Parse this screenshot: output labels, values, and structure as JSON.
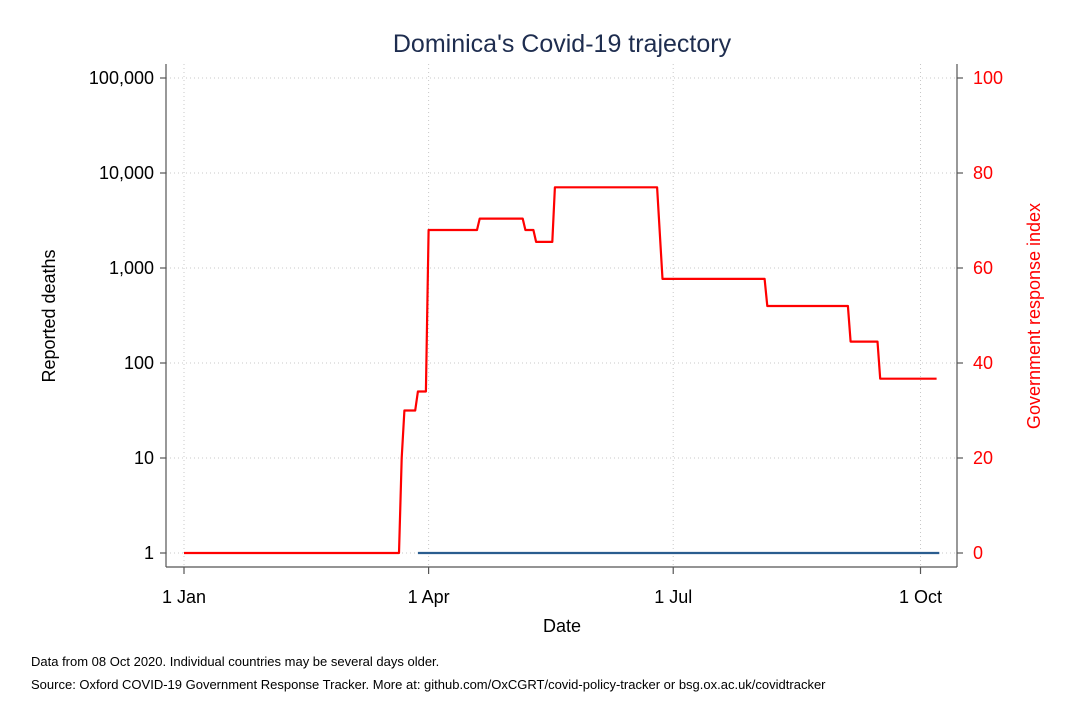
{
  "chart_data": {
    "type": "line",
    "title": "Dominica's Covid-19 trajectory",
    "xlabel": "Date",
    "ylabel_left": "Reported deaths",
    "ylabel_right": "Government response index",
    "x_ticks": [
      "1 Jan",
      "1 Apr",
      "1 Jul",
      "1 Oct"
    ],
    "x_tick_dates": [
      "2020-01-01",
      "2020-04-01",
      "2020-07-01",
      "2020-10-01"
    ],
    "x_range": [
      "2020-01-01",
      "2020-10-08"
    ],
    "y_left_scale": "log",
    "y_left_ticks": [
      1,
      10,
      100,
      1000,
      10000,
      100000
    ],
    "y_left_tick_labels": [
      "1",
      "10",
      "100",
      "1,000",
      "10,000",
      "100,000"
    ],
    "y_right_ticks": [
      0,
      20,
      40,
      60,
      80,
      100
    ],
    "y_right_range": [
      0,
      100
    ],
    "grid": true,
    "series": [
      {
        "axis": "left",
        "color": "#2a5d8f",
        "points": [
          [
            "2020-03-28",
            1
          ],
          [
            "2020-10-08",
            1
          ]
        ]
      },
      {
        "axis": "right",
        "color": "#ff0000",
        "points": [
          [
            "2020-01-01",
            0
          ],
          [
            "2020-03-21",
            0
          ],
          [
            "2020-03-22",
            20
          ],
          [
            "2020-03-23",
            30
          ],
          [
            "2020-03-27",
            30
          ],
          [
            "2020-03-28",
            34
          ],
          [
            "2020-03-31",
            34
          ],
          [
            "2020-04-01",
            68
          ],
          [
            "2020-04-19",
            68
          ],
          [
            "2020-04-20",
            70.4
          ],
          [
            "2020-05-06",
            70.4
          ],
          [
            "2020-05-07",
            68
          ],
          [
            "2020-05-10",
            68
          ],
          [
            "2020-05-11",
            65.5
          ],
          [
            "2020-05-17",
            65.5
          ],
          [
            "2020-05-18",
            77
          ],
          [
            "2020-06-25",
            77
          ],
          [
            "2020-06-27",
            57.7
          ],
          [
            "2020-08-04",
            57.7
          ],
          [
            "2020-08-05",
            52
          ],
          [
            "2020-09-04",
            52
          ],
          [
            "2020-09-05",
            44.5
          ],
          [
            "2020-09-15",
            44.5
          ],
          [
            "2020-09-16",
            36.7
          ],
          [
            "2020-10-07",
            36.7
          ]
        ]
      }
    ]
  },
  "notes": {
    "line1": "Data from 08 Oct 2020. Individual countries may be several days older.",
    "line2": "Source: Oxford COVID-19 Government Response Tracker. More at: github.com/OxCGRT/covid-policy-tracker or bsg.ox.ac.uk/covidtracker"
  },
  "colors": {
    "title": "#1e2d4f",
    "right_axis": "#ff0000",
    "axis": "#555555",
    "grid": "#c8c8c8"
  }
}
